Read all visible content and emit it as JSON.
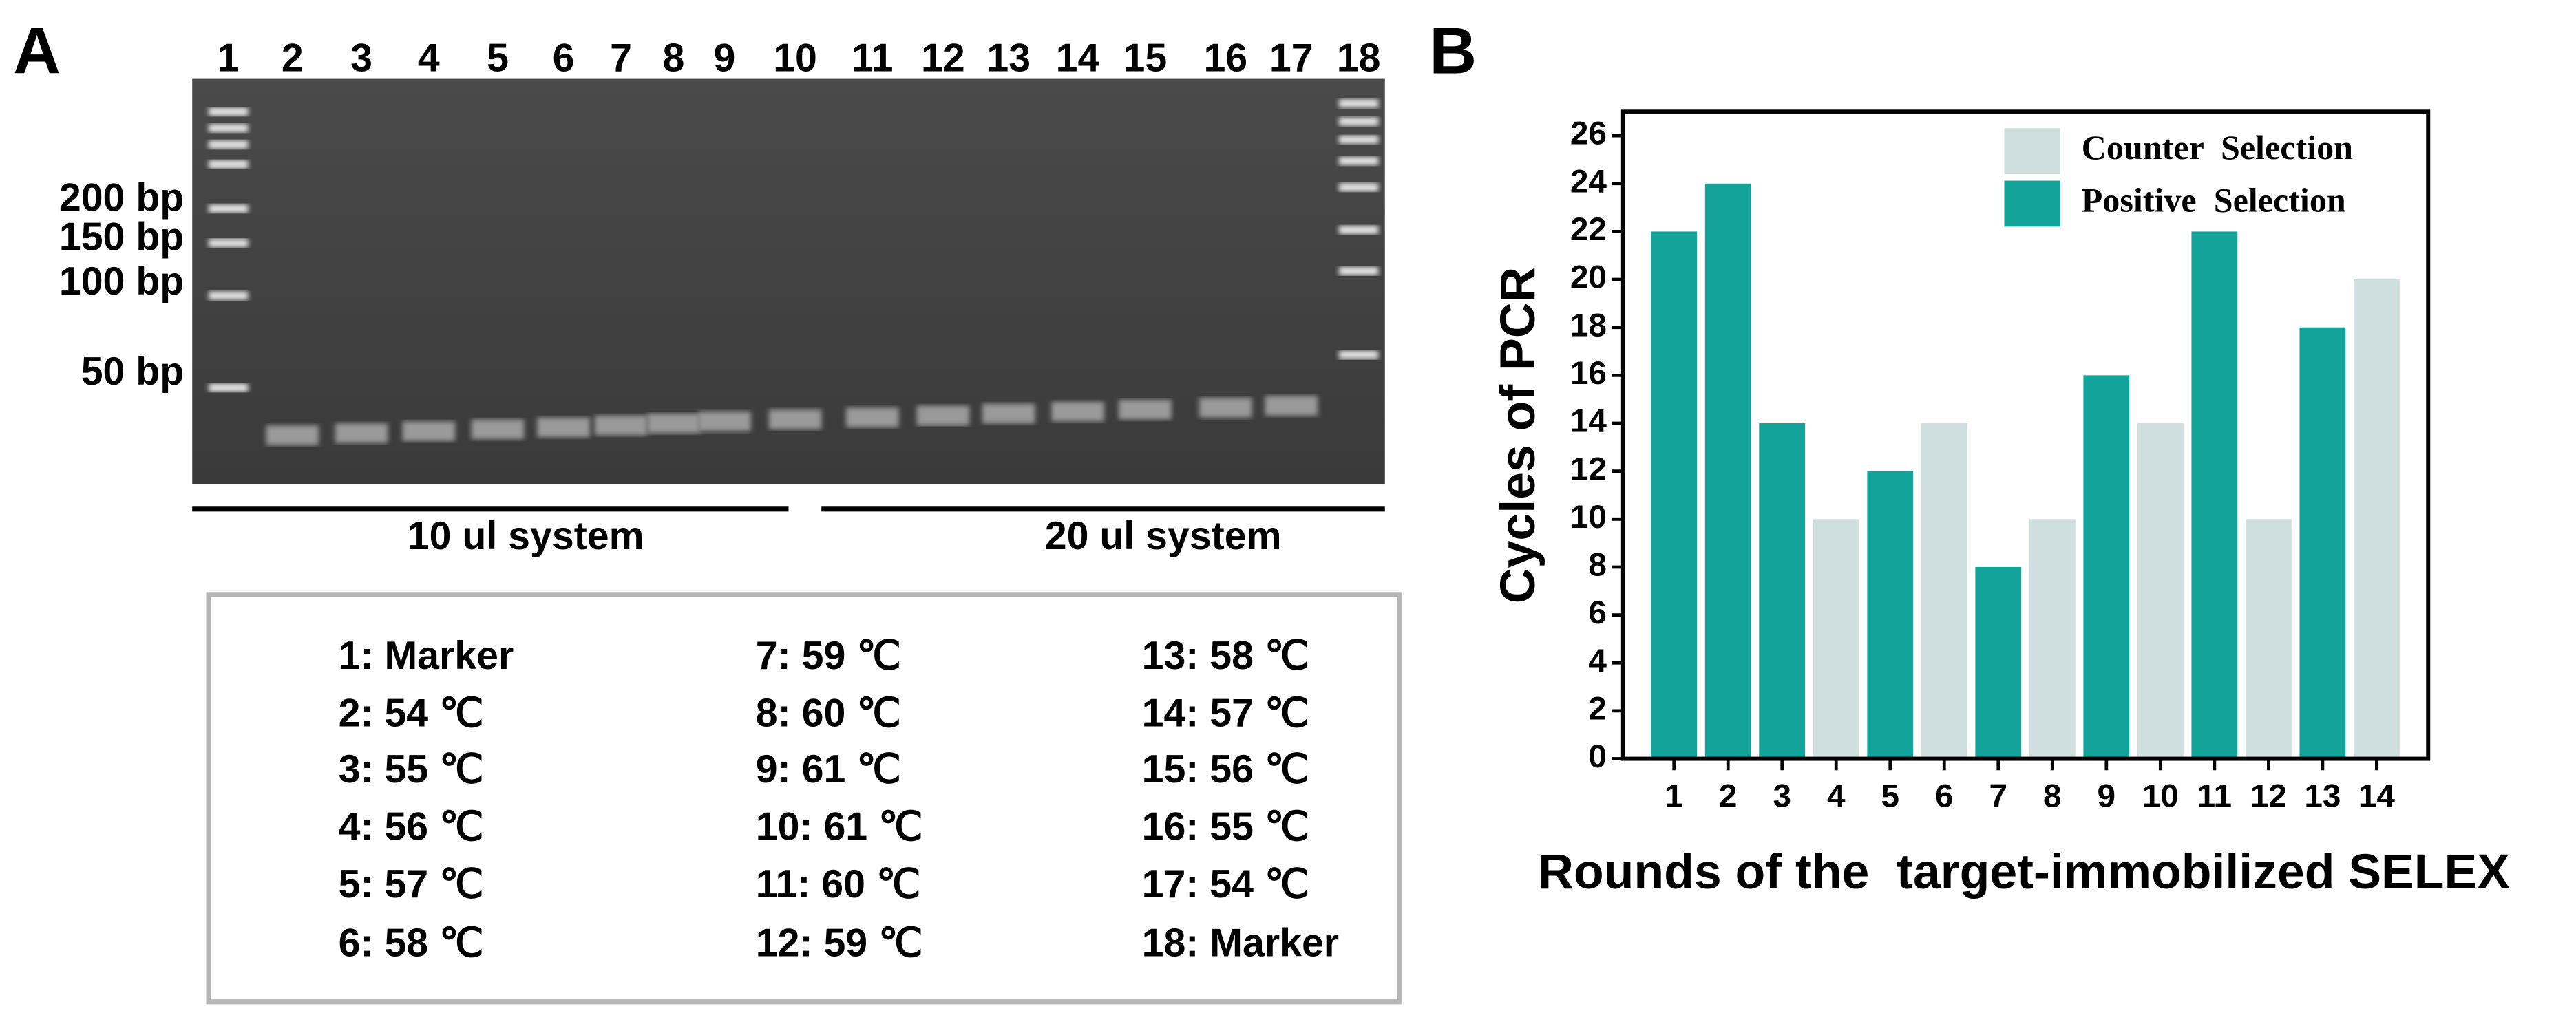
{
  "panel_a": {
    "label": "A",
    "lanes": [
      "1",
      "2",
      "3",
      "4",
      "5",
      "6",
      "7",
      "8",
      "9",
      "10",
      "11",
      "12",
      "13",
      "14",
      "15",
      "16",
      "17",
      "18"
    ],
    "markers": [
      "200 bp",
      "150 bp",
      "100 bp",
      "50 bp"
    ],
    "groups": [
      "10 ul system",
      "20 ul system"
    ],
    "legend": [
      "1: Marker",
      "2: 54 ℃",
      "3: 55 ℃",
      "4: 56 ℃",
      "5: 57 ℃",
      "6: 58 ℃",
      "7: 59 ℃",
      "8: 60 ℃",
      "9: 61 ℃",
      "10: 61 ℃",
      "11: 60 ℃",
      "12: 59 ℃",
      "13: 58 ℃",
      "14: 57 ℃",
      "15: 56 ℃",
      "16: 55 ℃",
      "17: 54 ℃",
      "18: Marker"
    ]
  },
  "chart_data": {
    "type": "bar",
    "panel_label": "B",
    "ylabel": "Cycles of PCR",
    "xlabel": "Rounds of the  target-immobilized SELEX",
    "categories": [
      "1",
      "2",
      "3",
      "4",
      "5",
      "6",
      "7",
      "8",
      "9",
      "10",
      "11",
      "12",
      "13",
      "14"
    ],
    "series": [
      {
        "name": "Counter  Selection",
        "color": "#cfdfdf",
        "values": [
          null,
          null,
          null,
          10,
          null,
          14,
          null,
          10,
          null,
          14,
          null,
          10,
          null,
          20
        ]
      },
      {
        "name": "Positive  Selection",
        "color": "#13a39a",
        "values": [
          22,
          24,
          14,
          null,
          12,
          null,
          8,
          null,
          16,
          null,
          22,
          null,
          18,
          null
        ]
      }
    ],
    "ylim": [
      0,
      27
    ],
    "yticks": [
      0,
      2,
      4,
      6,
      8,
      10,
      12,
      14,
      16,
      18,
      20,
      22,
      24,
      26
    ]
  }
}
